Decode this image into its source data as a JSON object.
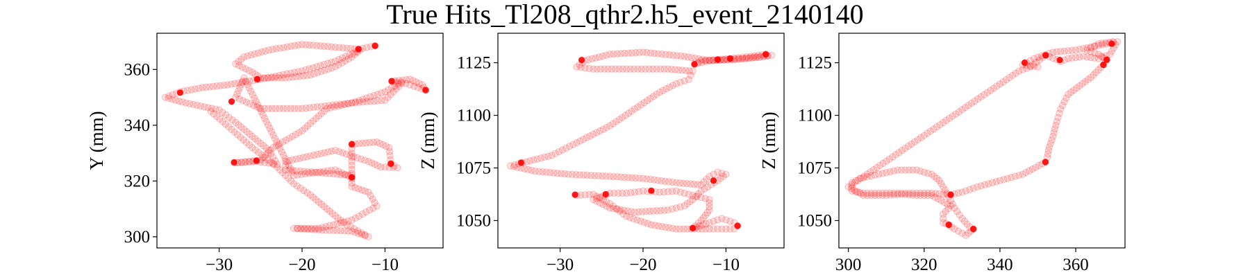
{
  "figure": {
    "title": "True Hits_Tl208_qthr2.h5_event_2140140",
    "hit_color": "#ff0000",
    "highlight_color": "#ff0000"
  },
  "chart_data": [
    {
      "type": "scatter",
      "id": "xy",
      "title": "",
      "xlabel": "",
      "ylabel": "Y (mm)",
      "xlim": [
        -37.5,
        -3.0
      ],
      "ylim": [
        296,
        373
      ],
      "xticks": [
        -30,
        -20,
        -10
      ],
      "yticks": [
        300,
        320,
        340,
        360
      ],
      "grid": false,
      "path": [
        [
          -11.2,
          368.5
        ],
        [
          -13.2,
          367.3
        ],
        [
          -16,
          368
        ],
        [
          -20,
          369
        ],
        [
          -24,
          367
        ],
        [
          -27,
          364.5
        ],
        [
          -28,
          362
        ],
        [
          -26,
          359
        ],
        [
          -25,
          357
        ],
        [
          -22,
          357
        ],
        [
          -19,
          358
        ],
        [
          -16,
          361
        ],
        [
          -14,
          364.5
        ],
        [
          -13,
          367
        ],
        [
          -16,
          363
        ],
        [
          -20,
          359.5
        ],
        [
          -25,
          356.5
        ],
        [
          -29,
          354.5
        ],
        [
          -32,
          353.5
        ],
        [
          -34.7,
          352
        ],
        [
          -36.5,
          350
        ],
        [
          -34,
          348
        ],
        [
          -30,
          345.5
        ],
        [
          -28,
          341
        ],
        [
          -26,
          336
        ],
        [
          -24,
          331
        ],
        [
          -23,
          326
        ],
        [
          -25.5,
          327
        ],
        [
          -28.2,
          326.5
        ],
        [
          -25,
          327.5
        ],
        [
          -23.5,
          332
        ],
        [
          -20,
          338
        ],
        [
          -17,
          346
        ],
        [
          -14,
          348
        ],
        [
          -10,
          349
        ],
        [
          -8,
          355
        ],
        [
          -9.2,
          355.8
        ],
        [
          -7,
          356.5
        ],
        [
          -5.5,
          354.5
        ],
        [
          -5.1,
          352.6
        ],
        [
          -6.5,
          354
        ],
        [
          -8,
          355.5
        ],
        [
          -10,
          352
        ],
        [
          -14,
          348
        ],
        [
          -20,
          346
        ],
        [
          -25,
          346
        ],
        [
          -28,
          350
        ],
        [
          -27,
          357
        ],
        [
          -21,
          322
        ],
        [
          -16,
          324
        ],
        [
          -14,
          321.3
        ],
        [
          -14,
          330
        ],
        [
          -14,
          333.2
        ],
        [
          -11,
          334
        ],
        [
          -9.5,
          332
        ],
        [
          -9.3,
          326.2
        ],
        [
          -8.5,
          324.8
        ],
        [
          -10.5,
          325
        ],
        [
          -12,
          327
        ],
        [
          -16,
          331
        ],
        [
          -19,
          329
        ],
        [
          -22,
          327
        ],
        [
          -22,
          324
        ],
        [
          -18,
          323
        ],
        [
          -14,
          322
        ],
        [
          -14,
          318
        ],
        [
          -12,
          316
        ],
        [
          -11,
          311
        ],
        [
          -14,
          306
        ],
        [
          -18,
          303
        ],
        [
          -21,
          303
        ],
        [
          -18,
          302.5
        ],
        [
          -14,
          302
        ],
        [
          -12,
          300
        ],
        [
          -15,
          305
        ],
        [
          -17,
          310
        ],
        [
          -19,
          315
        ],
        [
          -21,
          319
        ],
        [
          -23,
          325
        ],
        [
          -26,
          332
        ],
        [
          -31,
          345
        ]
      ],
      "highlights": [
        [
          -11.2,
          368.5
        ],
        [
          -13.2,
          367.3
        ],
        [
          -9.2,
          355.8
        ],
        [
          -5.1,
          352.6
        ],
        [
          -34.7,
          351.7
        ],
        [
          -14,
          333.2
        ],
        [
          -9.3,
          326.2
        ],
        [
          -28.2,
          326.7
        ],
        [
          -14,
          321.3
        ],
        [
          -25.5,
          327.3
        ],
        [
          -25.4,
          356.5
        ],
        [
          -28.5,
          348.5
        ]
      ]
    },
    {
      "type": "scatter",
      "id": "xz",
      "title": "",
      "xlabel": "",
      "ylabel": "Z (mm)",
      "xlim": [
        -37.5,
        -3.0
      ],
      "ylim": [
        1037,
        1139
      ],
      "xticks": [
        -30,
        -20,
        -10
      ],
      "yticks": [
        1050,
        1075,
        1100,
        1125
      ],
      "grid": false,
      "path": [
        [
          -5.2,
          1129
        ],
        [
          -7,
          1128
        ],
        [
          -9.5,
          1127
        ],
        [
          -11,
          1126.5
        ],
        [
          -13,
          1126
        ],
        [
          -13.8,
          1124.3
        ],
        [
          -12,
          1126
        ],
        [
          -9,
          1126.5
        ],
        [
          -6,
          1127.5
        ],
        [
          -4.5,
          1128.5
        ],
        [
          -8,
          1127
        ],
        [
          -12,
          1126
        ],
        [
          -15,
          1128
        ],
        [
          -20,
          1130
        ],
        [
          -24,
          1129
        ],
        [
          -27,
          1126
        ],
        [
          -28,
          1123
        ],
        [
          -26,
          1122
        ],
        [
          -22,
          1122
        ],
        [
          -17,
          1122
        ],
        [
          -14,
          1121
        ],
        [
          -14.5,
          1117
        ],
        [
          -16,
          1115
        ],
        [
          -18,
          1111
        ],
        [
          -21,
          1103
        ],
        [
          -24,
          1095
        ],
        [
          -28,
          1087
        ],
        [
          -31,
          1081
        ],
        [
          -34.5,
          1077.5
        ],
        [
          -36,
          1076
        ],
        [
          -33,
          1073.5
        ],
        [
          -29,
          1072
        ],
        [
          -24,
          1071
        ],
        [
          -20,
          1070
        ],
        [
          -16,
          1068
        ],
        [
          -13,
          1067
        ],
        [
          -12,
          1071
        ],
        [
          -11,
          1073
        ],
        [
          -10,
          1072
        ],
        [
          -11,
          1069
        ],
        [
          -13,
          1064
        ],
        [
          -14,
          1060
        ],
        [
          -15,
          1057
        ],
        [
          -17,
          1055
        ],
        [
          -21,
          1054
        ],
        [
          -24,
          1056
        ],
        [
          -26,
          1060
        ],
        [
          -24,
          1063
        ],
        [
          -22,
          1063
        ],
        [
          -20,
          1064
        ],
        [
          -18,
          1063.5
        ],
        [
          -16,
          1064
        ],
        [
          -14,
          1062
        ],
        [
          -12,
          1060
        ],
        [
          -12,
          1055
        ],
        [
          -13,
          1050
        ],
        [
          -14,
          1046.4
        ],
        [
          -12,
          1049
        ],
        [
          -10.5,
          1051
        ],
        [
          -9,
          1049
        ],
        [
          -8.6,
          1047.5
        ],
        [
          -9,
          1046
        ],
        [
          -10.5,
          1046
        ],
        [
          -12,
          1046
        ],
        [
          -16,
          1046
        ],
        [
          -19,
          1048
        ],
        [
          -22,
          1052
        ],
        [
          -24,
          1058
        ],
        [
          -26,
          1062.5
        ],
        [
          -28,
          1062
        ]
      ],
      "highlights": [
        [
          -5.2,
          1129
        ],
        [
          -9.5,
          1127
        ],
        [
          -11,
          1126.5
        ],
        [
          -13.8,
          1124.3
        ],
        [
          -34.7,
          1077.5
        ],
        [
          -28.2,
          1062.3
        ],
        [
          -24.5,
          1062.5
        ],
        [
          -19,
          1064.2
        ],
        [
          -14,
          1046.4
        ],
        [
          -8.6,
          1047.5
        ],
        [
          -27.4,
          1126.3
        ],
        [
          -11.5,
          1069
        ]
      ]
    },
    {
      "type": "scatter",
      "id": "yz",
      "title": "",
      "xlabel": "",
      "ylabel": "Z (mm)",
      "xlim": [
        297.5,
        373.0
      ],
      "ylim": [
        1037,
        1139
      ],
      "xticks": [
        300,
        320,
        340,
        360
      ],
      "yticks": [
        1050,
        1075,
        1100,
        1125
      ],
      "grid": false,
      "path": [
        [
          369.8,
          1135
        ],
        [
          366,
          1134
        ],
        [
          363,
          1131
        ],
        [
          366,
          1129
        ],
        [
          368.2,
          1126.4
        ],
        [
          367.3,
          1124
        ],
        [
          364,
          1118
        ],
        [
          361,
          1114
        ],
        [
          358,
          1110
        ],
        [
          356,
          1103
        ],
        [
          355,
          1097
        ],
        [
          354,
          1090
        ],
        [
          353,
          1085
        ],
        [
          352.5,
          1080
        ],
        [
          352,
          1077.8
        ],
        [
          346,
          1072
        ],
        [
          340,
          1069
        ],
        [
          334,
          1066
        ],
        [
          330,
          1063.5
        ],
        [
          327,
          1062.3
        ],
        [
          322,
          1063
        ],
        [
          316,
          1063
        ],
        [
          310,
          1063
        ],
        [
          304,
          1063
        ],
        [
          301,
          1064
        ],
        [
          301,
          1068
        ],
        [
          303,
          1070
        ],
        [
          308,
          1072
        ],
        [
          313,
          1074
        ],
        [
          318,
          1074
        ],
        [
          322,
          1072
        ],
        [
          324,
          1069
        ],
        [
          326,
          1063
        ],
        [
          328,
          1056
        ],
        [
          330,
          1051
        ],
        [
          332,
          1047
        ],
        [
          333,
          1046
        ],
        [
          331,
          1043
        ],
        [
          328,
          1046
        ],
        [
          326.5,
          1048
        ],
        [
          325,
          1049
        ],
        [
          325,
          1053
        ],
        [
          327,
          1057
        ],
        [
          322,
          1062
        ],
        [
          318,
          1062
        ],
        [
          314,
          1062.5
        ],
        [
          310,
          1062
        ],
        [
          304,
          1062
        ],
        [
          300,
          1066
        ],
        [
          345,
          1121
        ],
        [
          348,
          1123
        ],
        [
          352,
          1128.5
        ],
        [
          355,
          1126.5
        ],
        [
          356,
          1125.5
        ],
        [
          358,
          1127
        ],
        [
          362,
          1128
        ],
        [
          366,
          1127
        ],
        [
          369,
          1129
        ],
        [
          371,
          1135
        ],
        [
          360,
          1131
        ],
        [
          354,
          1130
        ],
        [
          349,
          1127
        ],
        [
          346,
          1124
        ],
        [
          350,
          1123
        ]
      ],
      "highlights": [
        [
          368.2,
          1126.4
        ],
        [
          367.3,
          1124
        ],
        [
          352.1,
          1128.5
        ],
        [
          355.8,
          1126.3
        ],
        [
          352,
          1077.8
        ],
        [
          327,
          1062.3
        ],
        [
          326.5,
          1048
        ],
        [
          333,
          1046
        ],
        [
          346.5,
          1125
        ],
        [
          369.5,
          1134
        ]
      ]
    }
  ]
}
